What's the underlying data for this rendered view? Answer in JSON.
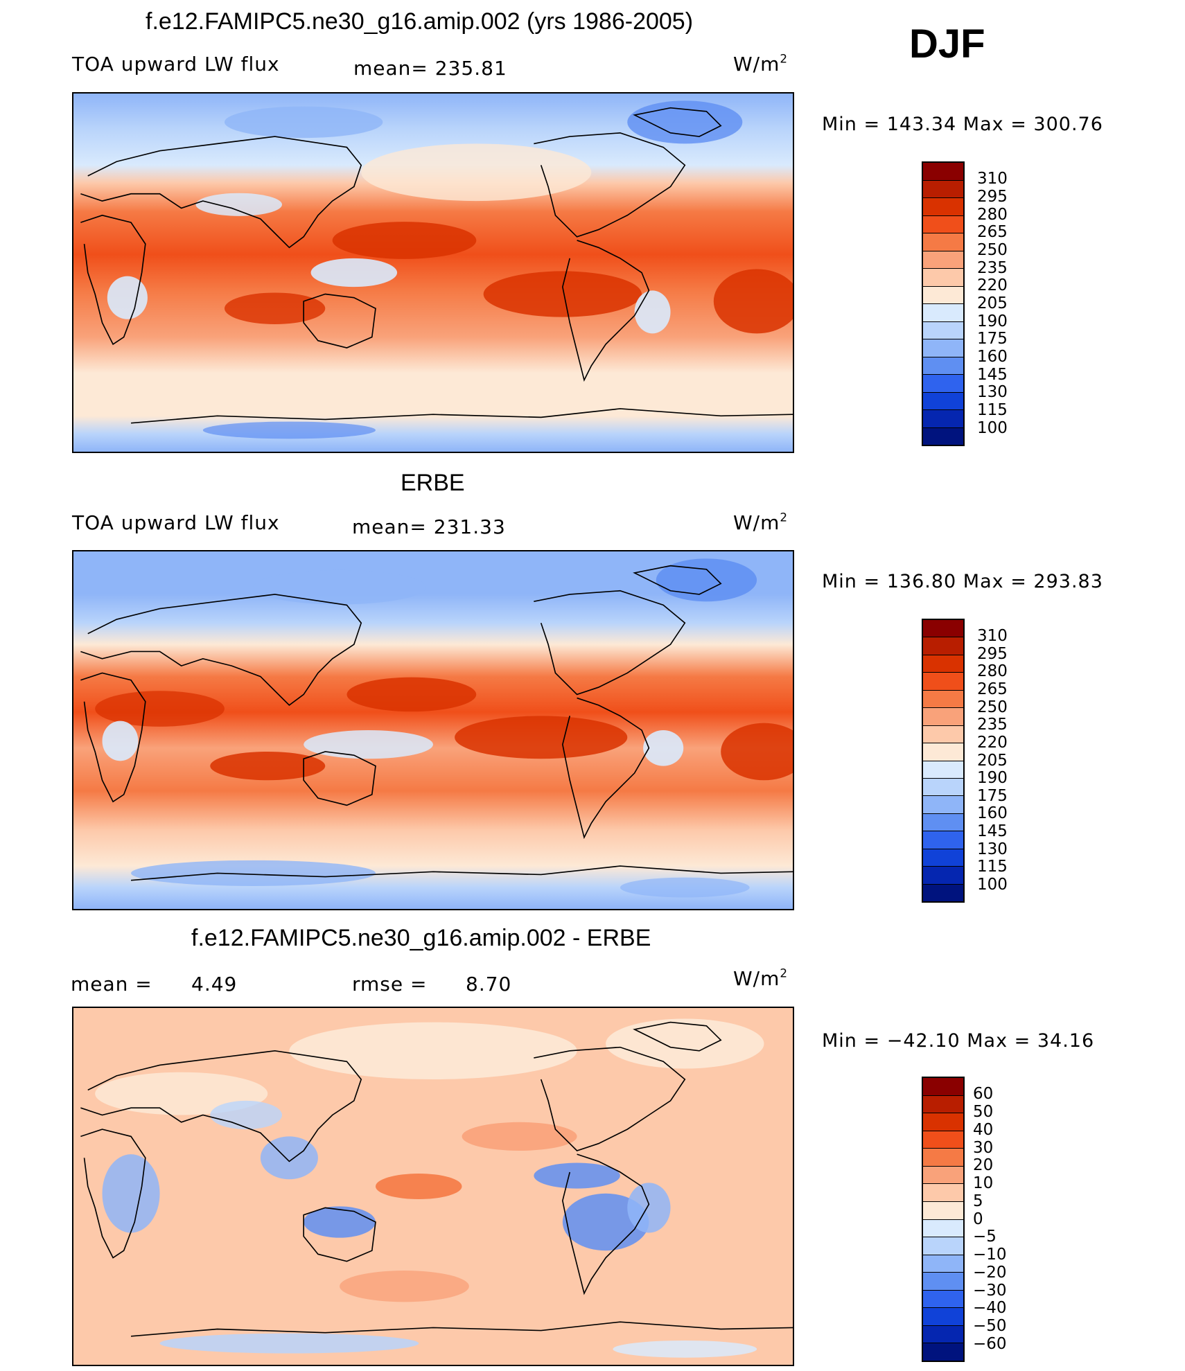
{
  "header": {
    "case_title": "f.e12.FAMIPC5.ne30_g16.amip.002 (yrs 1986-2005)",
    "season": "DJF"
  },
  "panels": [
    {
      "id": "model",
      "title": "",
      "left_label": "TOA upward LW flux",
      "stat_label": "mean=",
      "stat_value": "235.81",
      "units": "W/m",
      "units_sup": "2",
      "min_label": "Min",
      "min_value": "143.34",
      "max_label": "Max",
      "max_value": "300.76",
      "colorbar_labels": [
        "310",
        "295",
        "280",
        "265",
        "250",
        "235",
        "220",
        "205",
        "190",
        "175",
        "160",
        "145",
        "130",
        "115",
        "100"
      ],
      "colorbar_colors": [
        "#8a0000",
        "#b81e00",
        "#d93200",
        "#f04f1a",
        "#f57a45",
        "#f9a27a",
        "#fdc9aa",
        "#fde9d6",
        "#d9eafd",
        "#b9d4fb",
        "#8fb5f8",
        "#5f8ff2",
        "#2f63ee",
        "#1042d8",
        "#0526b0",
        "#00137e"
      ]
    },
    {
      "id": "obs",
      "title": "ERBE",
      "left_label": "TOA upward LW flux",
      "stat_label": "mean=",
      "stat_value": "231.33",
      "units": "W/m",
      "units_sup": "2",
      "min_label": "Min",
      "min_value": "136.80",
      "max_label": "Max",
      "max_value": "293.83",
      "colorbar_labels": [
        "310",
        "295",
        "280",
        "265",
        "250",
        "235",
        "220",
        "205",
        "190",
        "175",
        "160",
        "145",
        "130",
        "115",
        "100"
      ],
      "colorbar_colors": [
        "#8a0000",
        "#b81e00",
        "#d93200",
        "#f04f1a",
        "#f57a45",
        "#f9a27a",
        "#fdc9aa",
        "#fde9d6",
        "#d9eafd",
        "#b9d4fb",
        "#8fb5f8",
        "#5f8ff2",
        "#2f63ee",
        "#1042d8",
        "#0526b0",
        "#00137e"
      ]
    },
    {
      "id": "diff",
      "title": "f.e12.FAMIPC5.ne30_g16.amip.002 - ERBE",
      "left_label": "mean =",
      "left_value": "4.49",
      "stat_label": "rmse =",
      "stat_value": "8.70",
      "units": "W/m",
      "units_sup": "2",
      "min_label": "Min",
      "min_value": "−42.10",
      "max_label": "Max",
      "max_value": "34.16",
      "colorbar_labels": [
        "60",
        "50",
        "40",
        "30",
        "20",
        "10",
        "5",
        "0",
        "−5",
        "−10",
        "−20",
        "−30",
        "−40",
        "−50",
        "−60"
      ],
      "colorbar_colors": [
        "#8a0000",
        "#b81e00",
        "#d93200",
        "#f04f1a",
        "#f57a45",
        "#f9a27a",
        "#fdc9aa",
        "#fde9d6",
        "#d9eafd",
        "#b9d4fb",
        "#8fb5f8",
        "#5f8ff2",
        "#2f63ee",
        "#1042d8",
        "#0526b0",
        "#00137e"
      ]
    }
  ]
}
